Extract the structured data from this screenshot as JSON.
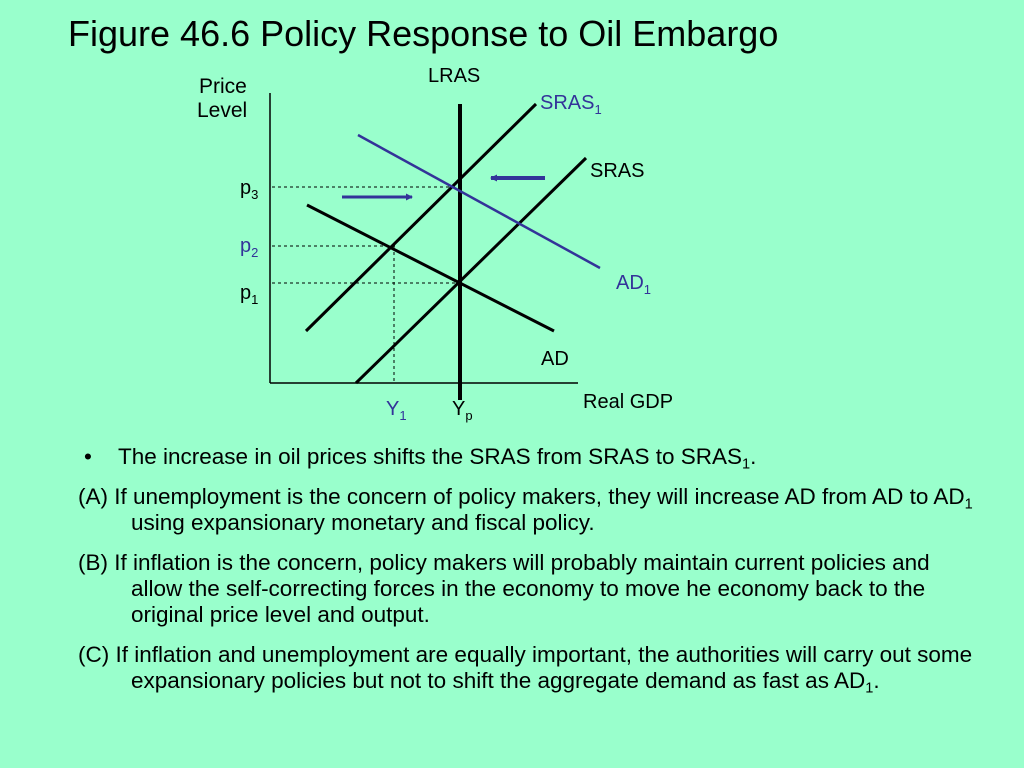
{
  "title": "Figure 46.6 Policy Response to Oil Embargo",
  "diagram": {
    "y_axis_label_line1": "Price",
    "y_axis_label_line2": "Level",
    "x_axis_label": "Real GDP",
    "lras_label": "LRAS",
    "sras1_base": "SRAS",
    "sras1_sub": "1",
    "sras_label": "SRAS",
    "ad1_base": "AD",
    "ad1_sub": "1",
    "ad_label": "AD",
    "p3_base": "p",
    "p3_sub": "3",
    "p2_base": "p",
    "p2_sub": "2",
    "p1_base": "p",
    "p1_sub": "1",
    "y1_base": "Y",
    "y1_sub": "1",
    "yp_base": "Y",
    "yp_sub": "p",
    "colors": {
      "background": "#99ffcc",
      "policy_blue": "#333399",
      "curve_black": "#000000"
    }
  },
  "bullets": {
    "bullet_symbol": "•",
    "intro_text": "The increase in oil prices shifts the SRAS from SRAS to SRAS",
    "intro_sub": "1",
    "intro_end": ".",
    "a_text1": "(A) If unemployment is the concern of policy makers, they will increase AD from AD to AD",
    "a_sub": "1",
    "a_text2": " using expansionary monetary and fiscal policy.",
    "b_text": "(B) If inflation is the concern, policy makers will probably maintain current policies and allow the self-correcting forces in the economy to move he economy back to the original price level and output.",
    "c_text1": "(C) If inflation and unemployment are equally important, the authorities will carry out some expansionary policies but not to shift the aggregate demand as fast as AD",
    "c_sub": "1",
    "c_text2": "."
  }
}
